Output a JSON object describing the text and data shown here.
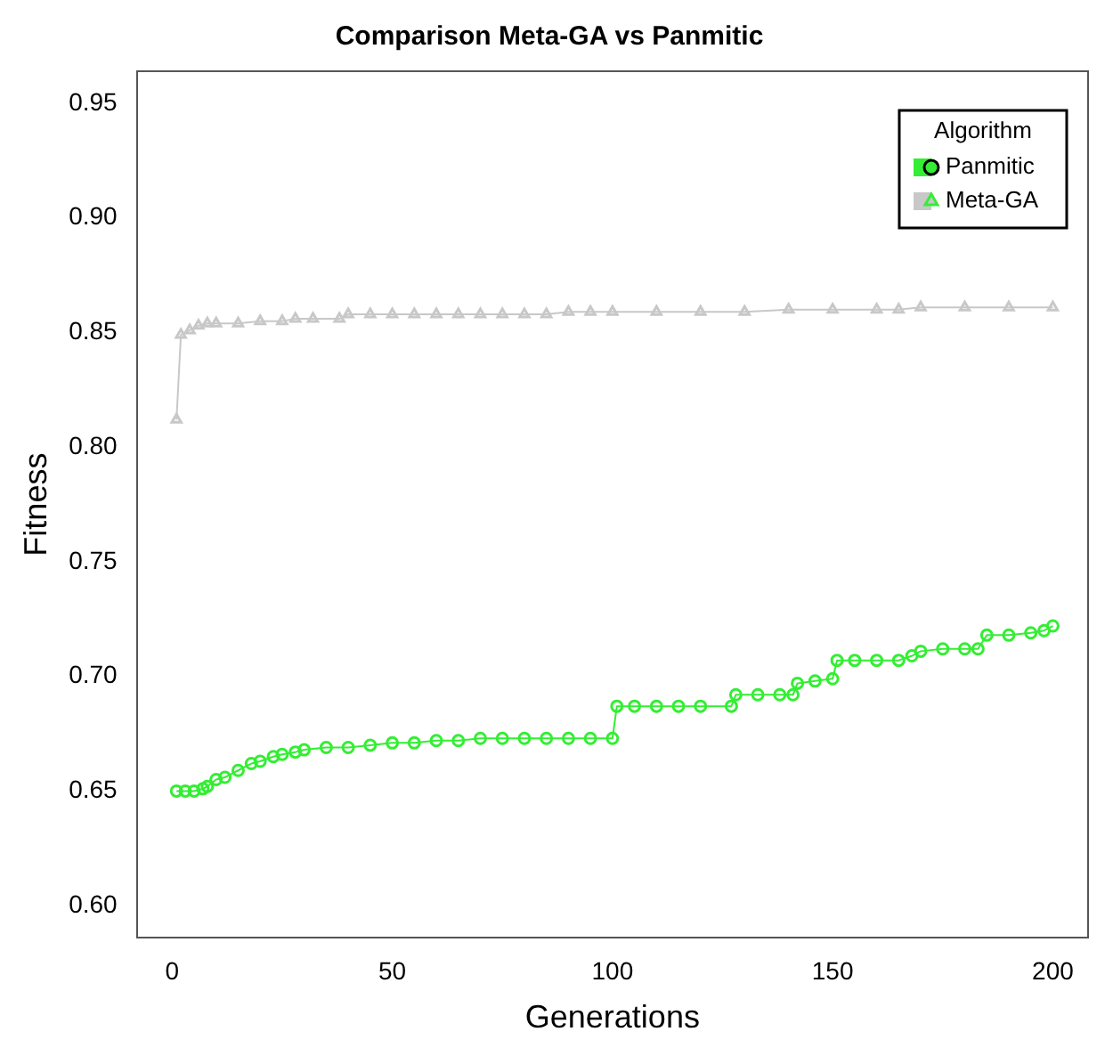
{
  "chart_data": {
    "type": "line",
    "title": "Comparison Meta-GA vs Panmitic",
    "xlabel": "Generations",
    "ylabel": "Fitness",
    "legend_title": "Algorithm",
    "legend": "top right",
    "grid": false,
    "xlim": [
      -8,
      208
    ],
    "xticks": [
      0,
      50,
      100,
      150,
      200
    ],
    "ylim": [
      0.586,
      0.964
    ],
    "yticks": [
      {
        "value": 0.6,
        "label": "0.60"
      },
      0.65,
      {
        "value": 0.7,
        "label": "0.70"
      },
      0.75,
      {
        "value": 0.8,
        "label": "0.80"
      },
      0.85,
      {
        "value": 0.9,
        "label": "0.90"
      },
      0.95
    ],
    "series": [
      {
        "name": "Panmitic",
        "color": "#33ee33",
        "marker": "circle",
        "x": [
          1,
          3,
          5,
          7,
          8,
          10,
          12,
          15,
          18,
          20,
          23,
          25,
          28,
          30,
          35,
          40,
          45,
          50,
          55,
          60,
          65,
          70,
          75,
          80,
          85,
          90,
          95,
          100,
          101,
          105,
          110,
          115,
          120,
          127,
          128,
          133,
          138,
          141,
          142,
          146,
          150,
          151,
          155,
          160,
          165,
          168,
          170,
          175,
          180,
          183,
          185,
          190,
          195,
          198,
          200
        ],
        "values": [
          0.65,
          0.65,
          0.65,
          0.651,
          0.652,
          0.655,
          0.656,
          0.659,
          0.662,
          0.663,
          0.665,
          0.666,
          0.667,
          0.668,
          0.669,
          0.669,
          0.67,
          0.671,
          0.671,
          0.672,
          0.672,
          0.673,
          0.673,
          0.673,
          0.673,
          0.673,
          0.673,
          0.673,
          0.687,
          0.687,
          0.687,
          0.687,
          0.687,
          0.687,
          0.692,
          0.692,
          0.692,
          0.692,
          0.697,
          0.698,
          0.699,
          0.707,
          0.707,
          0.707,
          0.707,
          0.709,
          0.711,
          0.712,
          0.712,
          0.712,
          0.718,
          0.718,
          0.719,
          0.72,
          0.722
        ]
      },
      {
        "name": "Meta-GA",
        "color": "#c8c8c8",
        "marker": "triangle",
        "x": [
          1,
          2,
          4,
          6,
          8,
          10,
          15,
          20,
          25,
          28,
          32,
          38,
          40,
          45,
          50,
          55,
          60,
          65,
          70,
          75,
          80,
          85,
          90,
          95,
          100,
          110,
          120,
          130,
          140,
          150,
          160,
          165,
          170,
          180,
          190,
          200
        ],
        "values": [
          0.812,
          0.849,
          0.851,
          0.853,
          0.854,
          0.854,
          0.854,
          0.855,
          0.855,
          0.856,
          0.856,
          0.856,
          0.858,
          0.858,
          0.858,
          0.858,
          0.858,
          0.858,
          0.858,
          0.858,
          0.858,
          0.858,
          0.859,
          0.859,
          0.859,
          0.859,
          0.859,
          0.859,
          0.86,
          0.86,
          0.86,
          0.86,
          0.861,
          0.861,
          0.861,
          0.861
        ]
      }
    ]
  }
}
